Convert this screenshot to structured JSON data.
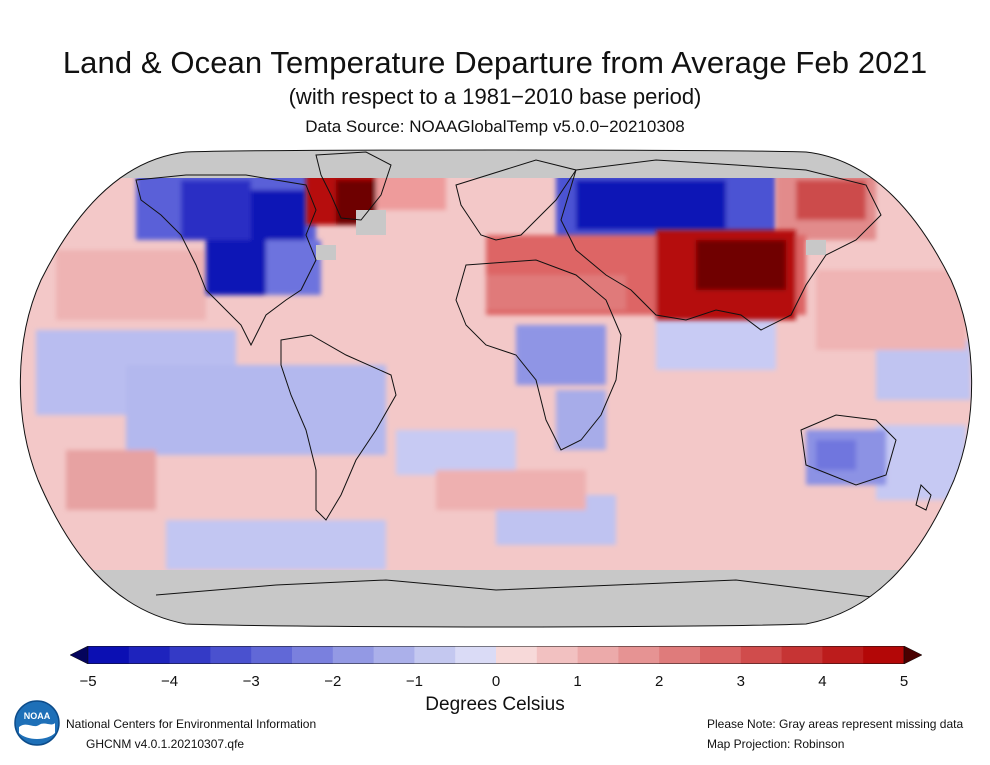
{
  "header": {
    "title": "Land & Ocean Temperature Departure from Average Feb 2021",
    "subtitle": "(with respect to a 1981−2010 base period)",
    "source": "Data Source: NOAAGlobalTemp v5.0.0−20210308"
  },
  "colorbar": {
    "label": "Degrees Celsius",
    "ticks": [
      "−5",
      "−4",
      "−3",
      "−2",
      "−1",
      "0",
      "1",
      "2",
      "3",
      "4",
      "5"
    ],
    "range": [
      -5,
      5
    ],
    "step": 0.5,
    "colors": {
      "neg_extreme": "#04045c",
      "pos_extreme": "#4a0000",
      "missing": "#c8c8c8"
    }
  },
  "map": {
    "projection": "Robinson",
    "ocean_color": "#f3c8c8",
    "regions": [
      {
        "name": "North America",
        "anomaly": -4.5
      },
      {
        "name": "Greenland",
        "anomaly": 4.0
      },
      {
        "name": "Western Russia",
        "anomaly": -4.5
      },
      {
        "name": "Central Asia / China",
        "anomaly": 4.5
      },
      {
        "name": "Eastern Siberia",
        "anomaly": 3.0
      },
      {
        "name": "Central Africa",
        "anomaly": -1.5
      },
      {
        "name": "Australia",
        "anomaly": -1.5
      },
      {
        "name": "Tropical Pacific",
        "anomaly": -1.5
      },
      {
        "name": "Antarctica",
        "anomaly": null
      }
    ]
  },
  "footer": {
    "org_line": "National Centers for Environmental Information",
    "dataset_line": "GHCNM v4.0.1.20210307.qfe",
    "note_line": "Please Note: Gray areas represent missing data",
    "projection_line": "Map Projection: Robinson",
    "logo_text": "NOAA"
  }
}
